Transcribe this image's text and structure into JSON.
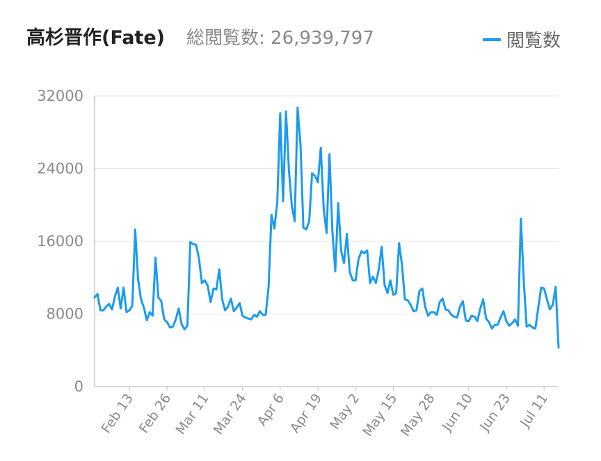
{
  "header": {
    "title": "高杉晋作(Fate)",
    "total_label": "総閲覧数: 26,939,797"
  },
  "legend": {
    "label": "閲覧数"
  },
  "colors": {
    "series": "#1a9bf0",
    "grid": "#e6e6e6",
    "axis": "#c8c8c8"
  },
  "chart_data": {
    "type": "line",
    "title": "高杉晋作(Fate)",
    "subtitle": "総閲覧数: 26,939,797",
    "xlabel": "",
    "ylabel": "",
    "ylim": [
      0,
      32000
    ],
    "yticks": [
      0,
      8000,
      16000,
      24000,
      32000
    ],
    "ytick_labels": [
      "0",
      "8000",
      "16000",
      "24000",
      "32000"
    ],
    "xtick_labels": [
      "Feb 13",
      "Feb 26",
      "Mar 11",
      "Mar 24",
      "Apr 6",
      "Apr 19",
      "May 2",
      "May 15",
      "May 28",
      "Jun 10",
      "Jun 23",
      "Jul 11"
    ],
    "xtick_index": [
      12,
      25,
      38,
      51,
      64,
      77,
      90,
      103,
      116,
      129,
      142,
      155
    ],
    "legend_position": "top-right",
    "grid": true,
    "series": [
      {
        "name": "閲覧数",
        "values": [
          9800,
          10200,
          8400,
          8400,
          8800,
          9100,
          8500,
          9900,
          10900,
          8600,
          10900,
          8200,
          8400,
          8900,
          17300,
          11800,
          9600,
          8700,
          7300,
          8200,
          7800,
          14200,
          9800,
          9400,
          7400,
          7100,
          6500,
          6600,
          7400,
          8600,
          6900,
          6300,
          6700,
          15900,
          15700,
          15600,
          14100,
          11400,
          11700,
          11100,
          9300,
          10800,
          10700,
          12900,
          9600,
          8400,
          8800,
          9700,
          8300,
          8700,
          9200,
          7800,
          7600,
          7500,
          7400,
          7900,
          7700,
          8300,
          7900,
          7900,
          11000,
          18900,
          17400,
          20300,
          30100,
          20400,
          30300,
          23900,
          19900,
          18200,
          30700,
          26700,
          17500,
          17300,
          18200,
          23500,
          23200,
          22500,
          26300,
          19600,
          16900,
          25600,
          17100,
          12700,
          20200,
          15000,
          13600,
          16800,
          12600,
          11700,
          11700,
          14000,
          14900,
          14700,
          15000,
          11400,
          12100,
          11400,
          12900,
          15400,
          11200,
          10300,
          11700,
          10100,
          10300,
          15800,
          13400,
          9600,
          9500,
          9000,
          8300,
          8400,
          10500,
          10800,
          8800,
          7800,
          8200,
          8200,
          7900,
          9300,
          9700,
          8500,
          8400,
          7900,
          7700,
          7600,
          8800,
          9400,
          7300,
          7200,
          7800,
          7700,
          7200,
          8600,
          9600,
          7500,
          7100,
          6400,
          6800,
          6800,
          7600,
          8300,
          7200,
          6700,
          7000,
          7400,
          6700,
          18500,
          11600,
          6600,
          6800,
          6500,
          6400,
          8700,
          10900,
          10800,
          9600,
          8500,
          9000,
          11000,
          4300
        ]
      }
    ]
  }
}
